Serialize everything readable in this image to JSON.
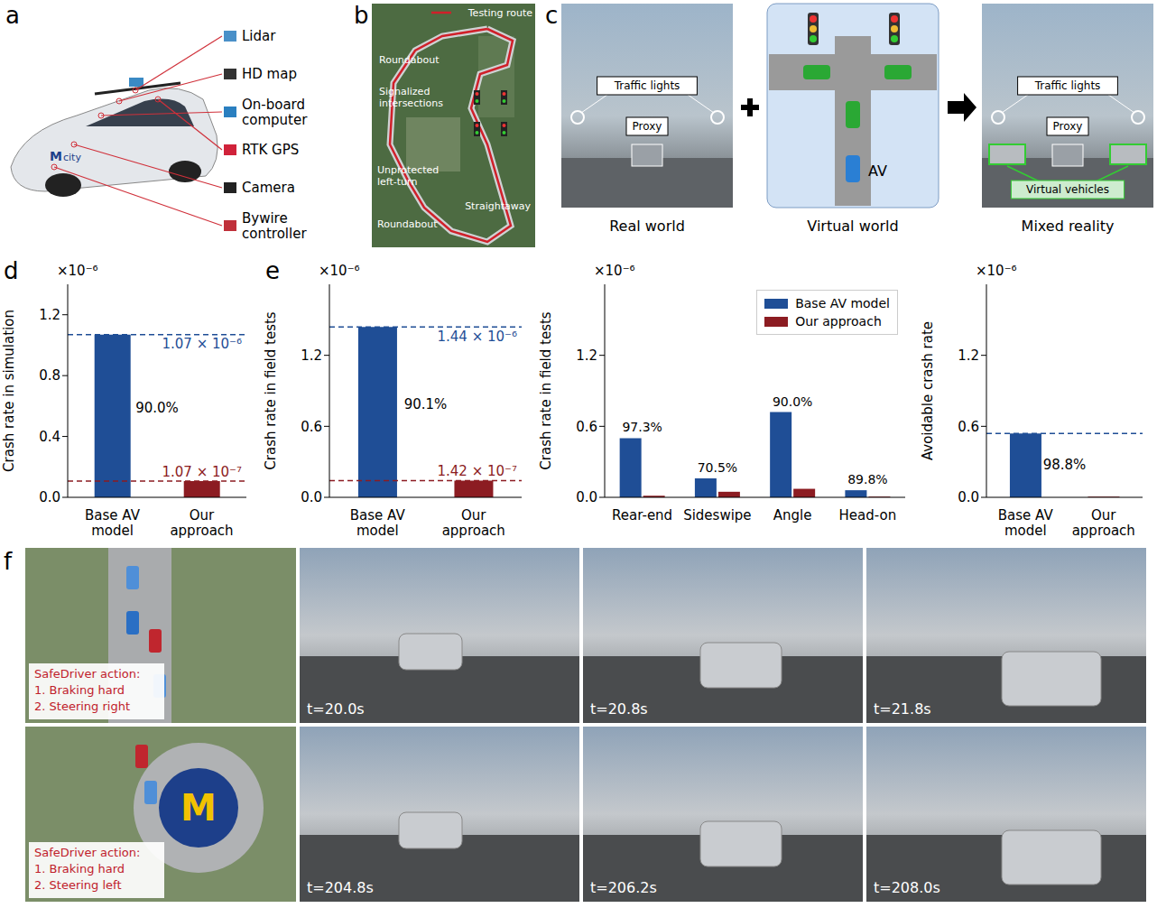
{
  "panel_a": {
    "label": "a",
    "vehicle_logo": [
      "M",
      "city"
    ],
    "components": [
      "Lidar",
      "HD map",
      "On-board computer",
      "RTK GPS",
      "Camera",
      "Bywire controller"
    ]
  },
  "panel_b": {
    "label": "b",
    "route_label": "Testing route",
    "annotations": [
      "Roundabout",
      "Signalized intersections",
      "Unprotected left-turn",
      "Roundabout",
      "Straightaway"
    ]
  },
  "panel_c": {
    "label": "c",
    "real_world": {
      "caption": "Real world",
      "labels": [
        "Traffic lights",
        "Proxy"
      ]
    },
    "virtual_world": {
      "caption": "Virtual world",
      "labels": [
        "AV"
      ]
    },
    "mixed_reality": {
      "caption": "Mixed reality",
      "labels": [
        "Traffic lights",
        "Proxy",
        "Virtual vehicles"
      ]
    }
  },
  "chart_data": [
    {
      "label": "d",
      "type": "bar",
      "y_label": "Crash rate in simulation",
      "y_multiplier": "×10⁻⁶",
      "categories": [
        "Base AV model",
        "Our approach"
      ],
      "values": [
        1.07,
        0.107
      ],
      "colors": [
        "#1f4e96",
        "#8c1c22"
      ],
      "ylim": [
        0,
        1.4
      ],
      "yticks": [
        {
          "value": 0,
          "label": "0.0"
        },
        0.4,
        0.8,
        1.2
      ],
      "annotations": {
        "reference_labels": [
          "1.07 × 10⁻⁶",
          "1.07 × 10⁻⁷"
        ],
        "reductions": [
          "90.0%"
        ]
      }
    },
    {
      "label": "e",
      "type": "bar",
      "y_label": "Crash rate in field tests",
      "y_multiplier": "×10⁻⁶",
      "categories": [
        "Base AV model",
        "Our approach"
      ],
      "values": [
        1.44,
        0.142
      ],
      "colors": [
        "#1f4e96",
        "#8c1c22"
      ],
      "ylim": [
        0,
        1.8
      ],
      "yticks": [
        {
          "value": 0,
          "label": "0.0"
        },
        0.6,
        1.2
      ],
      "annotations": {
        "reference_labels": [
          "1.44 × 10⁻⁶",
          "1.42 × 10⁻⁷"
        ],
        "reductions": [
          "90.1%"
        ]
      }
    },
    {
      "type": "bar",
      "y_label": "Crash rate in field tests",
      "y_multiplier": "×10⁻⁶",
      "categories": [
        "Rear-end",
        "Sideswipe",
        "Angle",
        "Head-on"
      ],
      "series": [
        {
          "name": "Base AV model",
          "color": "#1f4e96",
          "values": [
            0.5,
            0.16,
            0.72,
            0.06
          ]
        },
        {
          "name": "Our approach",
          "color": "#8c1c22",
          "values": [
            0.0135,
            0.047,
            0.072,
            0.0061
          ]
        }
      ],
      "ylim": [
        0,
        1.8
      ],
      "yticks": [
        {
          "value": 0,
          "label": "0.0"
        },
        0.6,
        1.2
      ],
      "legend": "upper right",
      "annotations": {
        "reductions": [
          "97.3%",
          "70.5%",
          "90.0%",
          "89.8%"
        ]
      }
    },
    {
      "type": "bar",
      "y_label": "Avoidable crash rate",
      "y_multiplier": "×10⁻⁶",
      "categories": [
        "Base AV model",
        "Our approach"
      ],
      "values": [
        0.54,
        0.0065
      ],
      "colors": [
        "#1f4e96",
        "#8c1c22"
      ],
      "ylim": [
        0,
        1.8
      ],
      "yticks": [
        {
          "value": 0,
          "label": "0.0"
        },
        0.6,
        1.2
      ],
      "annotations": {
        "reductions": [
          "98.8%"
        ]
      }
    }
  ],
  "panel_f": {
    "label": "f",
    "roundabout_logo": "M",
    "rows": [
      {
        "action_title": "SafeDriver action:",
        "actions": [
          "1. Braking hard",
          "2. Steering right"
        ],
        "frames": [
          "t=20.0s",
          "t=20.8s",
          "t=21.8s"
        ]
      },
      {
        "action_title": "SafeDriver action:",
        "actions": [
          "1. Braking hard",
          "2. Steering left"
        ],
        "frames": [
          "t=204.8s",
          "t=206.2s",
          "t=208.0s"
        ]
      }
    ]
  }
}
